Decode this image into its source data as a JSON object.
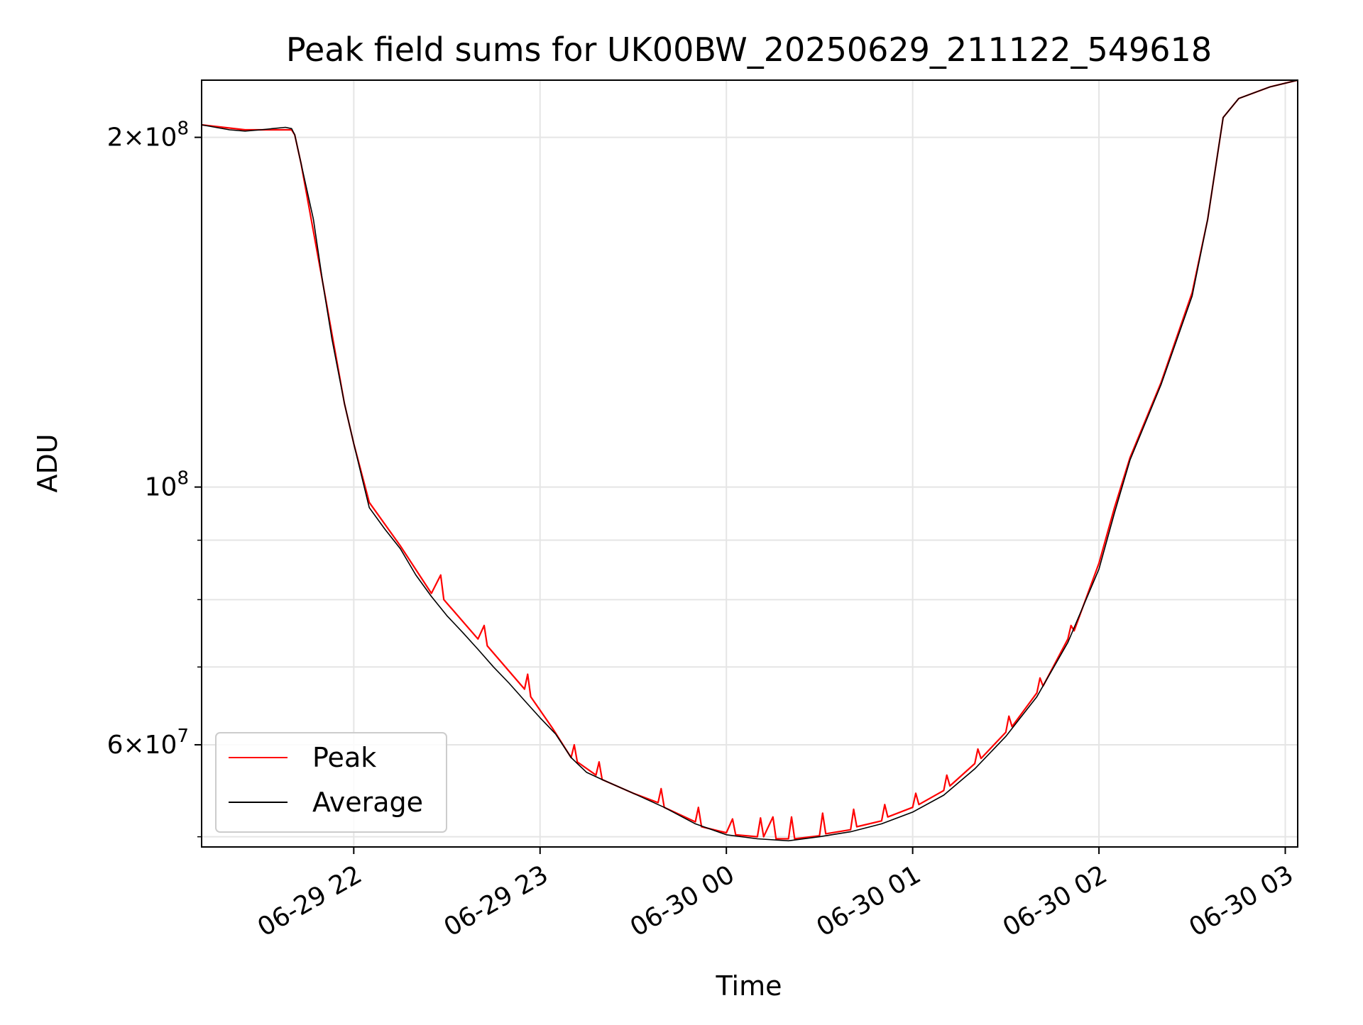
{
  "chart_data": {
    "type": "line",
    "title": "Peak field sums for UK00BW_20250629_211122_549618",
    "xlabel": "Time",
    "ylabel": "ADU",
    "yscale": "log",
    "ylim": [
      49000000,
      224000000
    ],
    "xlim": [
      "2025-06-29 21:11",
      "2025-06-30 03:04"
    ],
    "grid": true,
    "legend_position": "lower-left",
    "x_ticks": [
      {
        "x": "2025-06-29 22:00",
        "label": "06-29 22"
      },
      {
        "x": "2025-06-29 23:00",
        "label": "06-29 23"
      },
      {
        "x": "2025-06-30 00:00",
        "label": "06-30 00"
      },
      {
        "x": "2025-06-30 01:00",
        "label": "06-30 01"
      },
      {
        "x": "2025-06-30 02:00",
        "label": "06-30 02"
      },
      {
        "x": "2025-06-30 03:00",
        "label": "06-30 03"
      }
    ],
    "y_ticks_major": [
      {
        "y": 60000000,
        "base": "6",
        "exp": "7"
      },
      {
        "y": 100000000,
        "base": "",
        "exp": "8"
      },
      {
        "y": 200000000,
        "base": "2",
        "exp": "8"
      }
    ],
    "y_ticks_minor": [
      50000000,
      70000000,
      80000000,
      90000000
    ],
    "series": [
      {
        "name": "Peak",
        "color": "#ff0000",
        "points": [
          [
            "2025-06-29 21:11",
            205000000
          ],
          [
            "2025-06-29 21:25",
            203000000
          ],
          [
            "2025-06-29 21:40",
            203000000
          ],
          [
            "2025-06-29 21:40",
            203000000
          ],
          [
            "2025-06-29 21:41",
            201000000
          ],
          [
            "2025-06-29 21:43",
            190000000
          ],
          [
            "2025-06-29 21:50",
            150000000
          ],
          [
            "2025-06-29 21:57",
            118000000
          ],
          [
            "2025-06-29 22:00",
            109000000
          ],
          [
            "2025-06-29 22:05",
            97000000
          ],
          [
            "2025-06-29 22:15",
            89000000
          ],
          [
            "2025-06-29 22:25",
            81000000
          ],
          [
            "2025-06-29 22:28",
            84000000
          ],
          [
            "2025-06-29 22:29",
            80000000
          ],
          [
            "2025-06-29 22:40",
            74000000
          ],
          [
            "2025-06-29 22:42",
            76000000
          ],
          [
            "2025-06-29 22:43",
            73000000
          ],
          [
            "2025-06-29 22:55",
            67000000
          ],
          [
            "2025-06-29 22:56",
            69000000
          ],
          [
            "2025-06-29 22:57",
            66000000
          ],
          [
            "2025-06-29 23:04",
            62000000
          ],
          [
            "2025-06-29 23:10",
            58500000
          ],
          [
            "2025-06-29 23:11",
            60000000
          ],
          [
            "2025-06-29 23:12",
            58000000
          ],
          [
            "2025-06-29 23:18",
            56500000
          ],
          [
            "2025-06-29 23:19",
            58000000
          ],
          [
            "2025-06-29 23:20",
            56000000
          ],
          [
            "2025-06-29 23:30",
            54500000
          ],
          [
            "2025-06-29 23:38",
            53500000
          ],
          [
            "2025-06-29 23:39",
            55000000
          ],
          [
            "2025-06-29 23:40",
            53000000
          ],
          [
            "2025-06-29 23:50",
            51500000
          ],
          [
            "2025-06-29 23:51",
            53000000
          ],
          [
            "2025-06-29 23:52",
            51000000
          ],
          [
            "2025-06-30 00:00",
            50400000
          ],
          [
            "2025-06-30 00:02",
            51800000
          ],
          [
            "2025-06-30 00:03",
            50200000
          ],
          [
            "2025-06-30 00:10",
            50000000
          ],
          [
            "2025-06-30 00:11",
            51900000
          ],
          [
            "2025-06-30 00:12",
            50000000
          ],
          [
            "2025-06-30 00:15",
            52000000
          ],
          [
            "2025-06-30 00:16",
            49800000
          ],
          [
            "2025-06-30 00:20",
            49800000
          ],
          [
            "2025-06-30 00:21",
            52000000
          ],
          [
            "2025-06-30 00:22",
            49800000
          ],
          [
            "2025-06-30 00:30",
            50100000
          ],
          [
            "2025-06-30 00:31",
            52400000
          ],
          [
            "2025-06-30 00:32",
            50300000
          ],
          [
            "2025-06-30 00:40",
            50700000
          ],
          [
            "2025-06-30 00:41",
            52800000
          ],
          [
            "2025-06-30 00:42",
            51000000
          ],
          [
            "2025-06-30 00:50",
            51600000
          ],
          [
            "2025-06-30 00:51",
            53300000
          ],
          [
            "2025-06-30 00:52",
            52000000
          ],
          [
            "2025-06-30 01:00",
            53000000
          ],
          [
            "2025-06-30 01:01",
            54500000
          ],
          [
            "2025-06-30 01:02",
            53300000
          ],
          [
            "2025-06-30 01:10",
            54800000
          ],
          [
            "2025-06-30 01:11",
            56500000
          ],
          [
            "2025-06-30 01:12",
            55300000
          ],
          [
            "2025-06-30 01:20",
            57800000
          ],
          [
            "2025-06-30 01:21",
            59500000
          ],
          [
            "2025-06-30 01:22",
            58400000
          ],
          [
            "2025-06-30 01:30",
            61500000
          ],
          [
            "2025-06-30 01:31",
            63500000
          ],
          [
            "2025-06-30 01:32",
            62200000
          ],
          [
            "2025-06-30 01:40",
            66500000
          ],
          [
            "2025-06-30 01:41",
            68500000
          ],
          [
            "2025-06-30 01:42",
            67400000
          ],
          [
            "2025-06-30 01:50",
            74000000
          ],
          [
            "2025-06-30 01:51",
            76000000
          ],
          [
            "2025-06-30 01:52",
            75200000
          ],
          [
            "2025-06-30 02:00",
            86000000
          ],
          [
            "2025-06-30 02:05",
            96000000
          ],
          [
            "2025-06-30 02:10",
            106000000
          ],
          [
            "2025-06-30 02:20",
            123000000
          ],
          [
            "2025-06-30 02:30",
            147000000
          ],
          [
            "2025-06-30 02:35",
            170000000
          ],
          [
            "2025-06-30 02:40",
            208000000
          ],
          [
            "2025-06-30 02:45",
            216000000
          ],
          [
            "2025-06-30 02:55",
            221000000
          ],
          [
            "2025-06-30 03:04",
            224000000
          ]
        ]
      },
      {
        "name": "Average",
        "color": "#000000",
        "points": [
          [
            "2025-06-29 21:11",
            205000000
          ],
          [
            "2025-06-29 21:20",
            203000000
          ],
          [
            "2025-06-29 21:25",
            202500000
          ],
          [
            "2025-06-29 21:30",
            203000000
          ],
          [
            "2025-06-29 21:38",
            204000000
          ],
          [
            "2025-06-29 21:40",
            203500000
          ],
          [
            "2025-06-29 21:41",
            201000000
          ],
          [
            "2025-06-29 21:43",
            190000000
          ],
          [
            "2025-06-29 21:47",
            170000000
          ],
          [
            "2025-06-29 21:50",
            150000000
          ],
          [
            "2025-06-29 21:53",
            134000000
          ],
          [
            "2025-06-29 21:57",
            118000000
          ],
          [
            "2025-06-29 22:00",
            109000000
          ],
          [
            "2025-06-29 22:03",
            101000000
          ],
          [
            "2025-06-29 22:05",
            96000000
          ],
          [
            "2025-06-29 22:10",
            92000000
          ],
          [
            "2025-06-29 22:15",
            88500000
          ],
          [
            "2025-06-29 22:20",
            84000000
          ],
          [
            "2025-06-29 22:25",
            80500000
          ],
          [
            "2025-06-29 22:30",
            77500000
          ],
          [
            "2025-06-29 22:35",
            75000000
          ],
          [
            "2025-06-29 22:40",
            72500000
          ],
          [
            "2025-06-29 22:45",
            70000000
          ],
          [
            "2025-06-29 22:50",
            67800000
          ],
          [
            "2025-06-29 22:55",
            65500000
          ],
          [
            "2025-06-29 23:00",
            63300000
          ],
          [
            "2025-06-29 23:05",
            61300000
          ],
          [
            "2025-06-29 23:10",
            58500000
          ],
          [
            "2025-06-29 23:15",
            56800000
          ],
          [
            "2025-06-29 23:20",
            56000000
          ],
          [
            "2025-06-29 23:30",
            54500000
          ],
          [
            "2025-06-29 23:40",
            53000000
          ],
          [
            "2025-06-29 23:50",
            51300000
          ],
          [
            "2025-06-30 00:00",
            50200000
          ],
          [
            "2025-06-30 00:10",
            49800000
          ],
          [
            "2025-06-30 00:20",
            49600000
          ],
          [
            "2025-06-30 00:30",
            50000000
          ],
          [
            "2025-06-30 00:40",
            50500000
          ],
          [
            "2025-06-30 00:50",
            51300000
          ],
          [
            "2025-06-30 01:00",
            52500000
          ],
          [
            "2025-06-30 01:10",
            54300000
          ],
          [
            "2025-06-30 01:20",
            57200000
          ],
          [
            "2025-06-30 01:30",
            61000000
          ],
          [
            "2025-06-30 01:40",
            66000000
          ],
          [
            "2025-06-30 01:50",
            73500000
          ],
          [
            "2025-06-30 02:00",
            85000000
          ],
          [
            "2025-06-30 02:05",
            95000000
          ],
          [
            "2025-06-30 02:10",
            105500000
          ],
          [
            "2025-06-30 02:20",
            122500000
          ],
          [
            "2025-06-30 02:30",
            146000000
          ],
          [
            "2025-06-30 02:35",
            170000000
          ],
          [
            "2025-06-30 02:40",
            208000000
          ],
          [
            "2025-06-30 02:45",
            216000000
          ],
          [
            "2025-06-30 02:55",
            221000000
          ],
          [
            "2025-06-30 03:04",
            224000000
          ]
        ]
      }
    ]
  }
}
